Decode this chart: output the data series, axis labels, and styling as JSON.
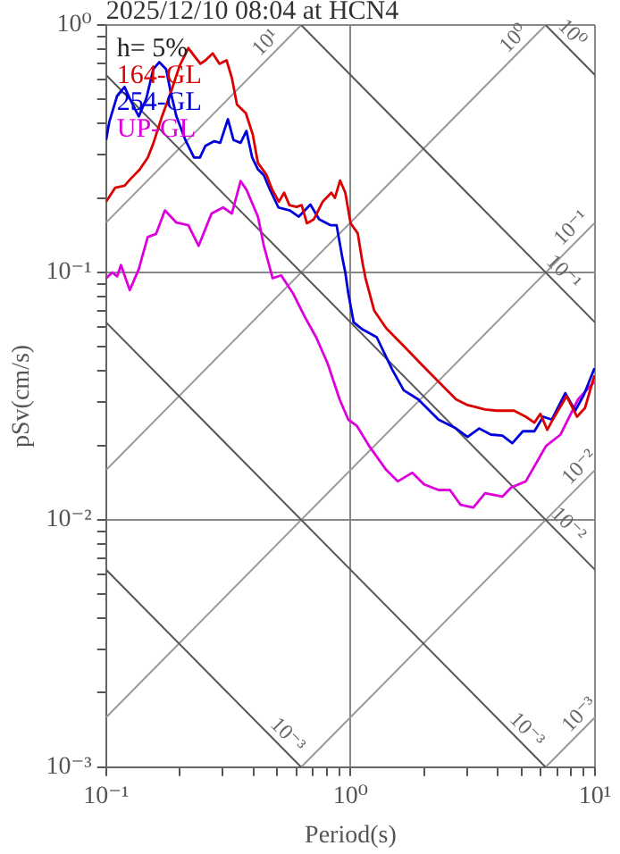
{
  "chart_data": {
    "type": "line",
    "title": "2025/12/10 08:04 at HCN4",
    "xlabel": "Period(s)",
    "ylabel": "pSv(cm/s)",
    "legend_title": "h= 5%",
    "legend": "top left",
    "log": "xy",
    "grid": true,
    "xlim": [
      0.1,
      10
    ],
    "ylim": [
      0.001,
      1
    ],
    "xticks": [
      {
        "value": 0.1,
        "label": "10⁻¹"
      },
      {
        "value": 0.2,
        "label": null
      },
      {
        "value": 0.3,
        "label": null
      },
      {
        "value": 0.4,
        "label": null
      },
      {
        "value": 0.5,
        "label": null
      },
      {
        "value": 0.6,
        "label": null
      },
      {
        "value": 0.7,
        "label": null
      },
      {
        "value": 0.8,
        "label": null
      },
      {
        "value": 0.9,
        "label": null
      },
      {
        "value": 1,
        "label": "10⁰"
      },
      {
        "value": 2,
        "label": null
      },
      {
        "value": 3,
        "label": null
      },
      {
        "value": 4,
        "label": null
      },
      {
        "value": 5,
        "label": null
      },
      {
        "value": 6,
        "label": null
      },
      {
        "value": 7,
        "label": null
      },
      {
        "value": 8,
        "label": null
      },
      {
        "value": 9,
        "label": null
      },
      {
        "value": 10,
        "label": "10¹"
      }
    ],
    "yticks": [
      {
        "value": 0.001,
        "label": "10⁻³"
      },
      {
        "value": 0.002,
        "label": null
      },
      {
        "value": 0.003,
        "label": null
      },
      {
        "value": 0.004,
        "label": null
      },
      {
        "value": 0.005,
        "label": null
      },
      {
        "value": 0.006,
        "label": null
      },
      {
        "value": 0.007,
        "label": null
      },
      {
        "value": 0.008,
        "label": null
      },
      {
        "value": 0.009,
        "label": null
      },
      {
        "value": 0.01,
        "label": "10⁻²"
      },
      {
        "value": 0.02,
        "label": null
      },
      {
        "value": 0.03,
        "label": null
      },
      {
        "value": 0.04,
        "label": null
      },
      {
        "value": 0.05,
        "label": null
      },
      {
        "value": 0.06,
        "label": null
      },
      {
        "value": 0.07,
        "label": null
      },
      {
        "value": 0.08,
        "label": null
      },
      {
        "value": 0.09,
        "label": null
      },
      {
        "value": 0.1,
        "label": "10⁻¹"
      },
      {
        "value": 0.2,
        "label": null
      },
      {
        "value": 0.3,
        "label": null
      },
      {
        "value": 0.4,
        "label": null
      },
      {
        "value": 0.5,
        "label": null
      },
      {
        "value": 0.6,
        "label": null
      },
      {
        "value": 0.7,
        "label": null
      },
      {
        "value": 0.8,
        "label": null
      },
      {
        "value": 0.9,
        "label": null
      },
      {
        "value": 1,
        "label": "10⁰"
      }
    ],
    "annotations": [
      {
        "text": "10¹",
        "x": 0.49,
        "y": 0.78
      },
      {
        "text": "10⁰",
        "x": 5.08,
        "y": 0.81
      },
      {
        "text": "10⁰",
        "x": 7.39,
        "y": 0.85
      },
      {
        "text": "10⁻¹",
        "x": 8.73,
        "y": 0.139
      },
      {
        "text": "10⁻¹",
        "x": 6.82,
        "y": 0.092
      },
      {
        "text": "10⁻²",
        "x": 9.42,
        "y": 0.015
      },
      {
        "text": "10⁻²",
        "x": 7.14,
        "y": 0.0088
      },
      {
        "text": "10⁻³",
        "x": 0.507,
        "y": 0.00124
      },
      {
        "text": "10⁻³",
        "x": 4.83,
        "y": 0.0013
      },
      {
        "text": "10⁻³",
        "x": 9.42,
        "y": 0.0015
      }
    ],
    "series": [
      {
        "color": "#555555",
        "x": [
          6.28,
          10
        ],
        "values": [
          1,
          0.628
        ]
      },
      {
        "color": "#555555",
        "x": [
          0.628,
          10
        ],
        "values": [
          1,
          0.0628
        ]
      },
      {
        "color": "#555555",
        "x": [
          0.1,
          10
        ],
        "values": [
          0.628,
          0.00628
        ]
      },
      {
        "color": "#555555",
        "x": [
          0.1,
          6.28
        ],
        "values": [
          0.0628,
          0.001
        ]
      },
      {
        "color": "#555555",
        "x": [
          0.1,
          0.628
        ],
        "values": [
          0.00628,
          0.001
        ]
      },
      {
        "color": "#999999",
        "x": [
          0.1,
          0.628
        ],
        "values": [
          0.159,
          1
        ]
      },
      {
        "color": "#999999",
        "x": [
          0.1,
          6.28
        ],
        "values": [
          0.0159,
          1
        ]
      },
      {
        "color": "#999999",
        "x": [
          0.1,
          10
        ],
        "values": [
          0.00159,
          0.159
        ]
      },
      {
        "color": "#999999",
        "x": [
          0.628,
          10
        ],
        "values": [
          0.001,
          0.0159
        ]
      },
      {
        "color": "#999999",
        "x": [
          6.28,
          10
        ],
        "values": [
          0.001,
          0.00159
        ]
      },
      {
        "name": "164-GL",
        "color": "#dd0000",
        "x": [
          0.1,
          0.109,
          0.119,
          0.126,
          0.137,
          0.148,
          0.156,
          0.169,
          0.184,
          0.2,
          0.217,
          0.228,
          0.243,
          0.255,
          0.273,
          0.291,
          0.311,
          0.327,
          0.343,
          0.373,
          0.398,
          0.418,
          0.454,
          0.477,
          0.509,
          0.535,
          0.562,
          0.601,
          0.631,
          0.663,
          0.708,
          0.769,
          0.834,
          0.863,
          0.906,
          0.952,
          1.0,
          1.07,
          1.12,
          1.15,
          1.25,
          1.4,
          1.65,
          1.94,
          2.29,
          2.7,
          3.01,
          3.55,
          3.96,
          4.67,
          5.21,
          5.65,
          5.98,
          6.38,
          6.66,
          7.65,
          8.44,
          9.1,
          9.95
        ],
        "values": [
          0.193,
          0.22,
          0.224,
          0.239,
          0.26,
          0.291,
          0.332,
          0.425,
          0.535,
          0.685,
          0.807,
          0.756,
          0.697,
          0.72,
          0.768,
          0.697,
          0.72,
          0.611,
          0.477,
          0.44,
          0.361,
          0.277,
          0.247,
          0.217,
          0.193,
          0.21,
          0.187,
          0.184,
          0.187,
          0.158,
          0.164,
          0.193,
          0.21,
          0.2,
          0.235,
          0.21,
          0.158,
          0.144,
          0.109,
          0.0952,
          0.07,
          0.0594,
          0.0504,
          0.0427,
          0.0362,
          0.0307,
          0.0291,
          0.0279,
          0.0276,
          0.0276,
          0.0261,
          0.0247,
          0.0268,
          0.0231,
          0.025,
          0.0316,
          0.0261,
          0.0283,
          0.0383
        ]
      },
      {
        "name": "254-GL",
        "color": "#0000dd",
        "x": [
          0.1,
          0.103,
          0.111,
          0.119,
          0.125,
          0.136,
          0.146,
          0.156,
          0.165,
          0.176,
          0.184,
          0.194,
          0.211,
          0.229,
          0.242,
          0.255,
          0.277,
          0.293,
          0.315,
          0.332,
          0.355,
          0.375,
          0.396,
          0.418,
          0.442,
          0.467,
          0.507,
          0.565,
          0.614,
          0.685,
          0.744,
          0.83,
          0.877,
          0.925,
          0.952,
          0.979,
          1.03,
          1.12,
          1.28,
          1.48,
          1.65,
          1.89,
          2.29,
          2.7,
          3.01,
          3.36,
          3.75,
          4.18,
          4.59,
          5.07,
          5.65,
          6.14,
          6.66,
          7.56,
          8.3,
          9.02,
          9.95
        ],
        "values": [
          0.343,
          0.405,
          0.518,
          0.562,
          0.504,
          0.427,
          0.504,
          0.663,
          0.708,
          0.663,
          0.532,
          0.427,
          0.343,
          0.291,
          0.291,
          0.325,
          0.339,
          0.334,
          0.416,
          0.343,
          0.334,
          0.373,
          0.291,
          0.261,
          0.247,
          0.217,
          0.183,
          0.178,
          0.168,
          0.188,
          0.164,
          0.155,
          0.155,
          0.115,
          0.1,
          0.0824,
          0.0628,
          0.0588,
          0.0547,
          0.0405,
          0.0334,
          0.0307,
          0.0254,
          0.0234,
          0.0216,
          0.0234,
          0.0221,
          0.0219,
          0.0204,
          0.0228,
          0.0228,
          0.0261,
          0.0254,
          0.0325,
          0.0276,
          0.0321,
          0.041
        ]
      },
      {
        "name": "UP-GL",
        "color": "#dd00dd",
        "x": [
          0.1,
          0.106,
          0.111,
          0.115,
          0.125,
          0.136,
          0.148,
          0.16,
          0.174,
          0.194,
          0.217,
          0.239,
          0.27,
          0.301,
          0.327,
          0.355,
          0.375,
          0.418,
          0.442,
          0.48,
          0.52,
          0.581,
          0.649,
          0.723,
          0.807,
          0.902,
          0.979,
          1.06,
          1.19,
          1.4,
          1.56,
          1.79,
          2.0,
          2.29,
          2.55,
          2.82,
          3.18,
          3.55,
          4.18,
          4.54,
          5.21,
          6.31,
          7.23,
          8.53,
          9.95
        ],
        "values": [
          0.0947,
          0.1,
          0.0964,
          0.107,
          0.0848,
          0.103,
          0.139,
          0.143,
          0.178,
          0.159,
          0.155,
          0.128,
          0.173,
          0.183,
          0.173,
          0.234,
          0.216,
          0.168,
          0.128,
          0.0947,
          0.0973,
          0.0824,
          0.0663,
          0.0547,
          0.0427,
          0.0307,
          0.0254,
          0.024,
          0.0199,
          0.0159,
          0.0143,
          0.0155,
          0.0139,
          0.0132,
          0.0132,
          0.0115,
          0.0112,
          0.0128,
          0.0124,
          0.0135,
          0.0143,
          0.0199,
          0.0221,
          0.0307,
          0.0362
        ]
      }
    ]
  }
}
